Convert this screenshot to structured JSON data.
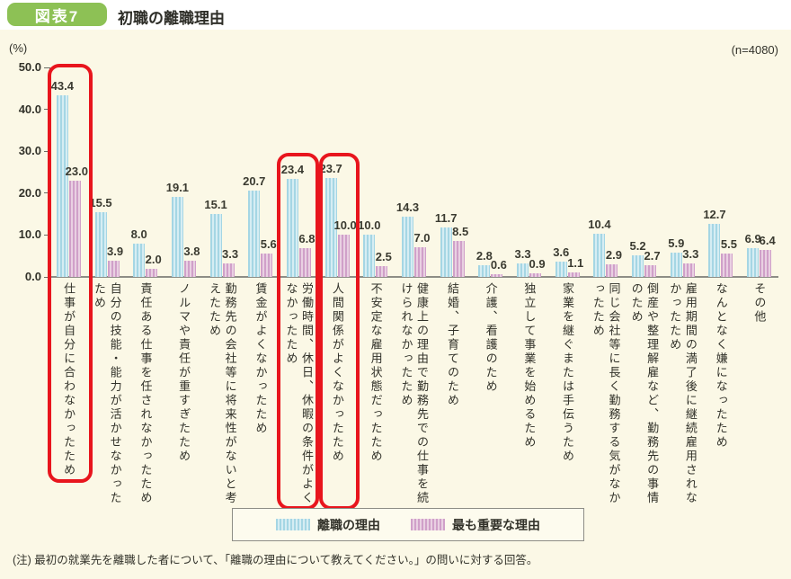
{
  "figure": {
    "badge": "図表7",
    "title": "初職の離職理由",
    "unit_label": "(%)",
    "sample_label": "(n=4080)",
    "note": "(注) 最初の就業先を離職した者について、「離職の理由について教えてください。」の問いに対する回答。"
  },
  "colors": {
    "badge_green": "#8dc155",
    "panel_bg": "#fbf8e6",
    "series1_base": "#a5d6e4",
    "series1_light": "#d6edf3",
    "series2_base": "#d0a0c9",
    "series2_light": "#e9d0e2",
    "highlight_red": "#e8151d",
    "axis_gray": "#8d8d86",
    "text_dark": "#32322a"
  },
  "chart_data": {
    "type": "bar",
    "title": "初職の離職理由",
    "ylabel": "(%)",
    "ylim": [
      0,
      50
    ],
    "yticks": [
      0,
      10,
      20,
      30,
      40,
      50
    ],
    "grid": false,
    "legend_position": "bottom",
    "categories": [
      "仕事が自分に合わなかったため",
      "自分の技能・能力が活かせなかったため",
      "責任ある仕事を任されなかったため",
      "ノルマや責任が重すぎたため",
      "勤務先の会社等に将来性がないと考えたため",
      "賃金がよくなかったため",
      "労働時間、休日、休暇の条件がよくなかったため",
      "人間関係がよくなかったため",
      "不安定な雇用状態だったため",
      "健康上の理由で勤務先での仕事を続けられなかったため",
      "結婚、子育てのため",
      "介護、看護のため",
      "独立して事業を始めるため",
      "家業を継ぐまたは手伝うため",
      "同じ会社等に長く勤務する気がなかったため",
      "倒産や整理解雇など、勤務先の事情のため",
      "雇用期間の満了後に継続雇用されなかったため",
      "なんとなく嫌になったため",
      "その他"
    ],
    "series": [
      {
        "name": "離職の理由",
        "values": [
          43.4,
          15.5,
          8.0,
          19.1,
          15.1,
          20.7,
          23.4,
          23.7,
          10.0,
          14.3,
          11.7,
          2.8,
          3.3,
          3.6,
          10.4,
          5.2,
          5.9,
          12.7,
          6.9
        ]
      },
      {
        "name": "最も重要な理由",
        "values": [
          23.0,
          3.9,
          2.0,
          3.8,
          3.3,
          5.6,
          6.8,
          10.0,
          2.5,
          7.0,
          8.5,
          0.6,
          0.9,
          1.1,
          2.9,
          2.7,
          3.3,
          5.5,
          6.4
        ]
      }
    ],
    "highlighted_category_indices": [
      0,
      6,
      7
    ]
  }
}
